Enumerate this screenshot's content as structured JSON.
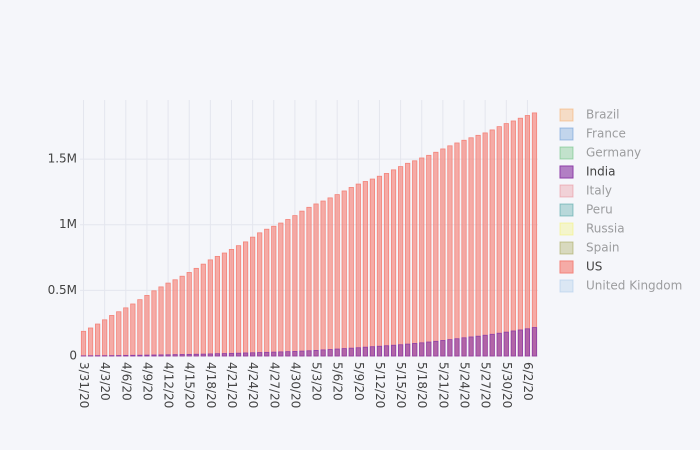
{
  "chart_data": {
    "type": "bar",
    "barmode": "overlay",
    "grid": true,
    "x": [
      "3/31/20",
      "4/1/20",
      "4/2/20",
      "4/3/20",
      "4/4/20",
      "4/5/20",
      "4/6/20",
      "4/7/20",
      "4/8/20",
      "4/9/20",
      "4/10/20",
      "4/11/20",
      "4/12/20",
      "4/13/20",
      "4/14/20",
      "4/15/20",
      "4/16/20",
      "4/17/20",
      "4/18/20",
      "4/19/20",
      "4/20/20",
      "4/21/20",
      "4/22/20",
      "4/23/20",
      "4/24/20",
      "4/25/20",
      "4/26/20",
      "4/27/20",
      "4/28/20",
      "4/29/20",
      "4/30/20",
      "5/1/20",
      "5/2/20",
      "5/3/20",
      "5/4/20",
      "5/5/20",
      "5/6/20",
      "5/7/20",
      "5/8/20",
      "5/9/20",
      "5/10/20",
      "5/11/20",
      "5/12/20",
      "5/13/20",
      "5/14/20",
      "5/15/20",
      "5/16/20",
      "5/17/20",
      "5/18/20",
      "5/19/20",
      "5/20/20",
      "5/21/20",
      "5/22/20",
      "5/23/20",
      "5/24/20",
      "5/25/20",
      "5/26/20",
      "5/27/20",
      "5/28/20",
      "5/29/20",
      "5/30/20",
      "5/31/20",
      "6/1/20",
      "6/2/20",
      "6/3/20"
    ],
    "xticks": [
      "3/31/20",
      "4/3/20",
      "4/6/20",
      "4/9/20",
      "4/12/20",
      "4/15/20",
      "4/18/20",
      "4/21/20",
      "4/24/20",
      "4/27/20",
      "4/30/20",
      "5/3/20",
      "5/6/20",
      "5/9/20",
      "5/12/20",
      "5/15/20",
      "5/18/20",
      "5/21/20",
      "5/24/20",
      "5/27/20",
      "5/30/20",
      "6/2/20"
    ],
    "ylim": [
      0,
      1950000
    ],
    "yticks": [
      0,
      {
        "value": 500000,
        "label": "0.5M"
      },
      {
        "value": 1000000,
        "label": "1M"
      },
      {
        "value": 1500000,
        "label": "1.5M"
      }
    ],
    "series": [
      {
        "name": "Brazil",
        "color": "#f5a55c",
        "visible": false
      },
      {
        "name": "France",
        "color": "#5a8fd0",
        "visible": false
      },
      {
        "name": "Germany",
        "color": "#5ab96f",
        "visible": false
      },
      {
        "name": "India",
        "color": "#8e3fa8",
        "visible": true,
        "values": [
          1397,
          1998,
          2543,
          2567,
          3082,
          3588,
          4778,
          5311,
          5916,
          6725,
          7598,
          8446,
          9205,
          10453,
          11487,
          12322,
          13430,
          14352,
          15722,
          17615,
          18539,
          20080,
          21370,
          23077,
          24530,
          26283,
          27890,
          29451,
          31324,
          33062,
          34863,
          37257,
          39699,
          42505,
          46437,
          49400,
          52987,
          56351,
          59695,
          62808,
          67161,
          70768,
          74292,
          78055,
          81997,
          85784,
          90648,
          95698,
          100328,
          106475,
          112028,
          118226,
          124794,
          131423,
          138536,
          144950,
          150793,
          158086,
          165386,
          173491,
          181827,
          190609,
          198370,
          207191,
          216919
        ]
      },
      {
        "name": "Italy",
        "color": "#e8838f",
        "visible": false
      },
      {
        "name": "Peru",
        "color": "#3a9a9a",
        "visible": false
      },
      {
        "name": "Russia",
        "color": "#f2f26a",
        "visible": false
      },
      {
        "name": "Spain",
        "color": "#9c9c45",
        "visible": false
      },
      {
        "name": "US",
        "color": "#f4837a",
        "visible": true,
        "values": [
          188172,
          213372,
          243453,
          275586,
          308850,
          337072,
          366667,
          396223,
          429052,
          461437,
          496535,
          526396,
          555313,
          580619,
          607670,
          636350,
          667592,
          699706,
          732197,
          758809,
          784326,
          811865,
          840351,
          869170,
          905358,
          938154,
          965785,
          988197,
          1012582,
          1039909,
          1069424,
          1103461,
          1132539,
          1158040,
          1180375,
          1204351,
          1229331,
          1257023,
          1283929,
          1309550,
          1329260,
          1347881,
          1369376,
          1390406,
          1417774,
          1442824,
          1467820,
          1486757,
          1508308,
          1528568,
          1551853,
          1577147,
          1600937,
          1622612,
          1643246,
          1662302,
          1680913,
          1699176,
          1721926,
          1747087,
          1770384,
          1790191,
          1811277,
          1831821,
          1851520
        ]
      },
      {
        "name": "United Kingdom",
        "color": "#a6c8e8",
        "visible": false
      }
    ]
  }
}
